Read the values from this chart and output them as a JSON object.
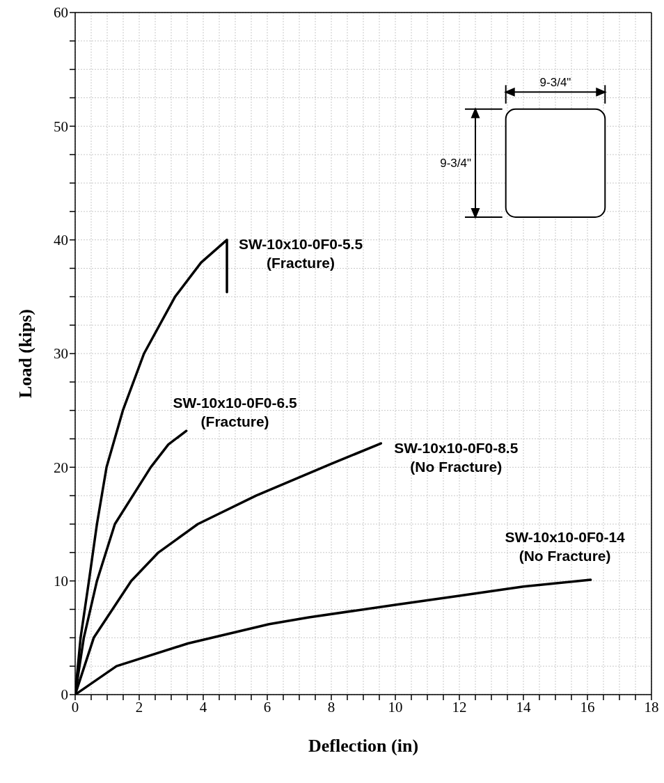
{
  "chart_data": {
    "type": "line",
    "xlabel": "Deflection (in)",
    "ylabel": "Load (kips)",
    "xlim": [
      0,
      18
    ],
    "ylim": [
      0,
      60
    ],
    "xticks": [
      0,
      {
        "value": 0.5,
        "label": null
      },
      {
        "value": 1,
        "label": null
      },
      {
        "value": 1.5,
        "label": null
      },
      2,
      {
        "value": 2.5,
        "label": null
      },
      {
        "value": 3,
        "label": null
      },
      {
        "value": 3.5,
        "label": null
      },
      4,
      {
        "value": 4.5,
        "label": null
      },
      {
        "value": 5,
        "label": null
      },
      {
        "value": 5.5,
        "label": null
      },
      6,
      {
        "value": 6.5,
        "label": null
      },
      {
        "value": 7,
        "label": null
      },
      {
        "value": 7.5,
        "label": null
      },
      8,
      {
        "value": 8.5,
        "label": null
      },
      {
        "value": 9,
        "label": null
      },
      {
        "value": 9.5,
        "label": null
      },
      10,
      {
        "value": 10.5,
        "label": null
      },
      {
        "value": 11,
        "label": null
      },
      {
        "value": 11.5,
        "label": null
      },
      12,
      {
        "value": 12.5,
        "label": null
      },
      {
        "value": 13,
        "label": null
      },
      {
        "value": 13.5,
        "label": null
      },
      14,
      {
        "value": 14.5,
        "label": null
      },
      {
        "value": 15,
        "label": null
      },
      {
        "value": 15.5,
        "label": null
      },
      16,
      {
        "value": 16.5,
        "label": null
      },
      {
        "value": 17,
        "label": null
      },
      {
        "value": 17.5,
        "label": null
      },
      18
    ],
    "yticks": [
      0,
      {
        "value": 2.5,
        "label": null
      },
      {
        "value": 5,
        "label": null
      },
      {
        "value": 7.5,
        "label": null
      },
      10,
      {
        "value": 12.5,
        "label": null
      },
      {
        "value": 15,
        "label": null
      },
      {
        "value": 17.5,
        "label": null
      },
      20,
      {
        "value": 22.5,
        "label": null
      },
      {
        "value": 25,
        "label": null
      },
      {
        "value": 27.5,
        "label": null
      },
      30,
      {
        "value": 32.5,
        "label": null
      },
      {
        "value": 35,
        "label": null
      },
      {
        "value": 37.5,
        "label": null
      },
      40,
      {
        "value": 42.5,
        "label": null
      },
      {
        "value": 45,
        "label": null
      },
      {
        "value": 47.5,
        "label": null
      },
      50,
      {
        "value": 52.5,
        "label": null
      },
      {
        "value": 55,
        "label": null
      },
      {
        "value": 57.5,
        "label": null
      },
      60
    ],
    "grid": true,
    "marker": "none",
    "line_style": "solid",
    "series": [
      {
        "name": "SW-10x10-0F0-5.5 (Fracture)",
        "color": "#000000",
        "x": [
          0,
          0.17,
          0.43,
          0.68,
          0.98,
          1.49,
          2.15,
          3.12,
          3.93,
          4.74,
          4.74
        ],
        "values": [
          0,
          5,
          10,
          15,
          20,
          25,
          30,
          35,
          38,
          40,
          35.4
        ]
      },
      {
        "name": "SW-10x10-0F0-6.5 (Fracture)",
        "color": "#000000",
        "x": [
          0,
          0.27,
          0.68,
          1.24,
          2.36,
          2.91,
          3.47
        ],
        "values": [
          0,
          5,
          10,
          15,
          20,
          22,
          23.2
        ]
      },
      {
        "name": "SW-10x10-0F0-8.5 (No Fracture)",
        "color": "#000000",
        "x": [
          0,
          0.58,
          1.75,
          2.6,
          3.83,
          5.65,
          8.0,
          9.55
        ],
        "values": [
          0,
          5,
          10,
          12.5,
          15,
          17.5,
          20.3,
          22.1
        ]
      },
      {
        "name": "SW-10x10-0F0-14 (No Fracture)",
        "color": "#000000",
        "x": [
          0,
          1.29,
          3.52,
          6.06,
          7.3,
          10,
          12,
          14,
          16.1
        ],
        "values": [
          0,
          2.5,
          4.5,
          6.2,
          6.8,
          7.9,
          8.7,
          9.5,
          10.1
        ]
      }
    ],
    "annotations": [
      "9-3/4\"",
      "9-3/4\""
    ]
  }
}
